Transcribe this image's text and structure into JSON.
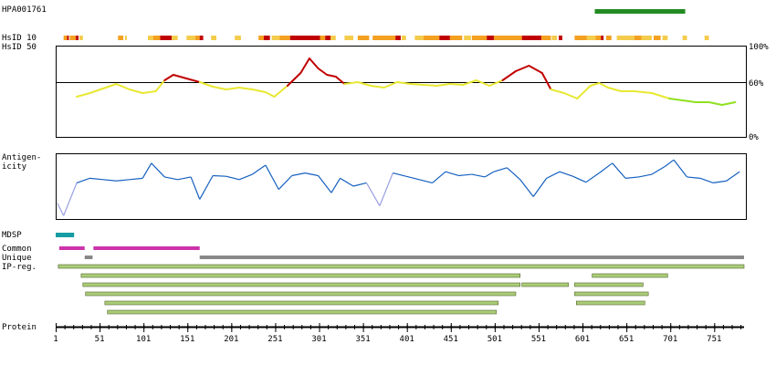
{
  "antibody_id": "HPA001761",
  "labels": {
    "hsid10": "HsID 10",
    "hsid50": "HsID 50",
    "antigenicity": "Antigen-\nicity",
    "mdsp": "MDSP",
    "common": "Common",
    "unique": "Unique",
    "ipreg": "IP-reg.",
    "protein": "Protein"
  },
  "colors": {
    "antigen_bar": "#228b22",
    "identity_high": "#c00000",
    "identity_mid": "#e8e832",
    "identity_low": "#90e020",
    "antigenicity_line": "#1560c0",
    "antigenicity_low": "#9aa0e0",
    "mdsp": "#169ca3",
    "common": "#cc33aa",
    "unique": "#888888",
    "ipreg": "#aacc77"
  },
  "chart_data": {
    "type": "line",
    "protein_length": 785,
    "antigen_region": [
      615,
      718
    ],
    "axis": {
      "ticks": [
        1,
        51,
        101,
        151,
        201,
        251,
        301,
        351,
        401,
        451,
        501,
        551,
        601,
        651,
        701,
        751
      ]
    },
    "hsid50": {
      "yaxis_labels": [
        "100%",
        "60%",
        "0%"
      ],
      "ylim": [
        0,
        100
      ],
      "threshold": 60,
      "x": [
        25,
        40,
        55,
        70,
        85,
        100,
        115,
        125,
        135,
        150,
        165,
        180,
        195,
        210,
        225,
        240,
        250,
        265,
        280,
        290,
        300,
        310,
        320,
        330,
        345,
        360,
        375,
        390,
        405,
        420,
        435,
        450,
        465,
        480,
        495,
        510,
        525,
        540,
        555,
        565,
        580,
        595,
        610,
        620,
        630,
        645,
        660,
        680,
        700,
        715,
        730,
        745,
        760,
        775
      ],
      "y": [
        44,
        48,
        53,
        58,
        52,
        48,
        50,
        62,
        68,
        64,
        60,
        55,
        52,
        54,
        52,
        49,
        44,
        56,
        70,
        86,
        75,
        68,
        66,
        58,
        60,
        56,
        54,
        60,
        58,
        57,
        56,
        58,
        57,
        62,
        56,
        62,
        72,
        78,
        70,
        52,
        48,
        42,
        56,
        59,
        54,
        50,
        50,
        48,
        42,
        40,
        38,
        38,
        35,
        38
      ]
    },
    "antigenicity": {
      "x": [
        3,
        10,
        25,
        40,
        55,
        70,
        85,
        100,
        110,
        125,
        140,
        155,
        165,
        180,
        195,
        210,
        225,
        240,
        255,
        270,
        285,
        300,
        315,
        325,
        340,
        355,
        370,
        385,
        400,
        415,
        430,
        445,
        460,
        475,
        490,
        500,
        515,
        530,
        545,
        560,
        575,
        590,
        605,
        620,
        635,
        650,
        665,
        680,
        695,
        705,
        720,
        735,
        750,
        765,
        780
      ],
      "y": [
        0.24,
        0.05,
        0.55,
        0.62,
        0.6,
        0.58,
        0.6,
        0.62,
        0.85,
        0.64,
        0.6,
        0.64,
        0.3,
        0.66,
        0.65,
        0.6,
        0.68,
        0.82,
        0.45,
        0.66,
        0.7,
        0.66,
        0.4,
        0.62,
        0.5,
        0.55,
        0.2,
        0.7,
        0.65,
        0.6,
        0.55,
        0.72,
        0.66,
        0.68,
        0.64,
        0.72,
        0.78,
        0.6,
        0.34,
        0.62,
        0.72,
        0.65,
        0.56,
        0.7,
        0.85,
        0.62,
        0.64,
        0.68,
        0.8,
        0.9,
        0.64,
        0.62,
        0.55,
        0.58,
        0.72
      ]
    },
    "mdsp": [
      [
        1,
        22
      ]
    ],
    "common": [
      [
        5,
        34
      ],
      [
        44,
        165
      ]
    ],
    "unique": [
      [
        34,
        43
      ],
      [
        165,
        785
      ]
    ],
    "ipreg": [
      [
        4,
        785
      ],
      [
        30,
        530
      ],
      [
        612,
        698
      ],
      [
        32,
        530
      ],
      [
        532,
        585
      ],
      [
        592,
        670
      ],
      [
        35,
        525
      ],
      [
        592,
        676
      ],
      [
        57,
        505
      ],
      [
        594,
        672
      ],
      [
        60,
        503
      ]
    ],
    "hsid10": {
      "red": [
        [
          14,
          16
        ],
        [
          24,
          27
        ],
        [
          120,
          133
        ],
        [
          165,
          169
        ],
        [
          238,
          245
        ],
        [
          268,
          302
        ],
        [
          308,
          314
        ],
        [
          388,
          394
        ],
        [
          438,
          450
        ],
        [
          492,
          500
        ],
        [
          532,
          554
        ],
        [
          574,
          578
        ],
        [
          622,
          625
        ]
      ],
      "orange": [
        [
          10,
          14
        ],
        [
          17,
          24
        ],
        [
          72,
          78
        ],
        [
          112,
          120
        ],
        [
          160,
          165
        ],
        [
          232,
          238
        ],
        [
          256,
          268
        ],
        [
          302,
          308
        ],
        [
          345,
          358
        ],
        [
          362,
          388
        ],
        [
          420,
          438
        ],
        [
          450,
          464
        ],
        [
          475,
          492
        ],
        [
          500,
          532
        ],
        [
          554,
          565
        ],
        [
          592,
          606
        ],
        [
          616,
          622
        ],
        [
          628,
          634
        ],
        [
          660,
          668
        ],
        [
          682,
          690
        ]
      ],
      "yellow": [
        [
          28,
          32
        ],
        [
          80,
          82
        ],
        [
          106,
          112
        ],
        [
          130,
          140
        ],
        [
          150,
          160
        ],
        [
          178,
          184
        ],
        [
          205,
          212
        ],
        [
          247,
          256
        ],
        [
          314,
          320
        ],
        [
          330,
          340
        ],
        [
          395,
          400
        ],
        [
          410,
          420
        ],
        [
          466,
          474
        ],
        [
          506,
          512
        ],
        [
          566,
          572
        ],
        [
          606,
          616
        ],
        [
          640,
          660
        ],
        [
          668,
          680
        ],
        [
          692,
          698
        ],
        [
          715,
          720
        ],
        [
          740,
          745
        ]
      ]
    }
  }
}
